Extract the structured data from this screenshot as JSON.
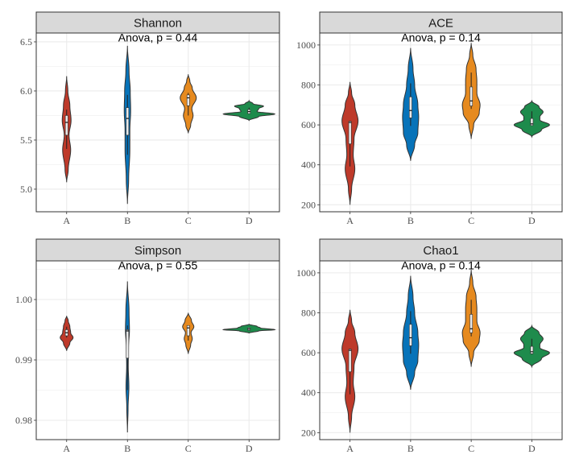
{
  "chart_data": [
    {
      "type": "violin",
      "title": "Shannon",
      "annotation": "Anova, p = 0.44",
      "categories": [
        "A",
        "B",
        "C",
        "D"
      ],
      "ylim": [
        4.77,
        6.59
      ],
      "yticks": [
        5.0,
        5.5,
        6.0,
        6.5
      ],
      "ytick_labels": [
        "5.0",
        "5.5",
        "6.0",
        "6.5"
      ],
      "grid": true,
      "groups": [
        {
          "name": "A",
          "density": [
            [
              5.07,
              0
            ],
            [
              5.2,
              2
            ],
            [
              5.4,
              5
            ],
            [
              5.55,
              3
            ],
            [
              5.7,
              5.5
            ],
            [
              5.85,
              4
            ],
            [
              6.0,
              1.5
            ],
            [
              6.15,
              0
            ]
          ],
          "box": {
            "lower": 5.41,
            "q1": 5.55,
            "median": 5.68,
            "q3": 5.75,
            "upper": 5.81
          }
        },
        {
          "name": "B",
          "density": [
            [
              4.85,
              0
            ],
            [
              5.1,
              1.5
            ],
            [
              5.4,
              3
            ],
            [
              5.6,
              3
            ],
            [
              5.8,
              4
            ],
            [
              6.0,
              3.5
            ],
            [
              6.2,
              2
            ],
            [
              6.46,
              0
            ]
          ],
          "box": {
            "lower": 5.35,
            "q1": 5.55,
            "median": 5.72,
            "q3": 5.83,
            "upper": 5.96
          }
        },
        {
          "name": "C",
          "density": [
            [
              5.57,
              0
            ],
            [
              5.65,
              3
            ],
            [
              5.75,
              6
            ],
            [
              5.82,
              4.5
            ],
            [
              5.93,
              10
            ],
            [
              6.03,
              5
            ],
            [
              6.1,
              2
            ],
            [
              6.17,
              0
            ]
          ],
          "box": {
            "lower": 5.75,
            "q1": 5.85,
            "median": 5.93,
            "q3": 5.96,
            "upper": 5.98
          }
        },
        {
          "name": "D",
          "density": [
            [
              5.7,
              0
            ],
            [
              5.74,
              12
            ],
            [
              5.765,
              32
            ],
            [
              5.79,
              10
            ],
            [
              5.82,
              12
            ],
            [
              5.845,
              18
            ],
            [
              5.87,
              5
            ],
            [
              5.9,
              0
            ]
          ],
          "box": {
            "lower": 5.77,
            "q1": 5.77,
            "median": 5.79,
            "q3": 5.81,
            "upper": 5.83
          }
        }
      ]
    },
    {
      "type": "violin",
      "title": "ACE",
      "annotation": "Anova, p = 0.14",
      "categories": [
        "A",
        "B",
        "C",
        "D"
      ],
      "ylim": [
        165,
        1060
      ],
      "yticks": [
        200,
        400,
        600,
        800,
        1000
      ],
      "ytick_labels": [
        "200",
        "400",
        "600",
        "800",
        "1000"
      ],
      "grid": true,
      "groups": [
        {
          "name": "A",
          "density": [
            [
              200,
              0
            ],
            [
              280,
              2
            ],
            [
              380,
              6
            ],
            [
              450,
              4
            ],
            [
              530,
              5
            ],
            [
              620,
              10
            ],
            [
              700,
              6
            ],
            [
              760,
              2
            ],
            [
              815,
              0
            ]
          ],
          "box": {
            "lower": 392,
            "q1": 505,
            "median": 612,
            "q3": 618,
            "upper": 620
          }
        },
        {
          "name": "B",
          "density": [
            [
              420,
              0
            ],
            [
              500,
              5
            ],
            [
              560,
              9
            ],
            [
              640,
              10
            ],
            [
              700,
              9
            ],
            [
              800,
              5
            ],
            [
              880,
              3
            ],
            [
              985,
              0
            ]
          ],
          "box": {
            "lower": 595,
            "q1": 635,
            "median": 672,
            "q3": 740,
            "upper": 808
          }
        },
        {
          "name": "C",
          "density": [
            [
              530,
              0
            ],
            [
              600,
              3
            ],
            [
              660,
              10
            ],
            [
              700,
              11
            ],
            [
              760,
              7
            ],
            [
              820,
              7
            ],
            [
              880,
              6
            ],
            [
              950,
              2
            ],
            [
              1010,
              0
            ]
          ],
          "box": {
            "lower": 680,
            "q1": 695,
            "median": 720,
            "q3": 790,
            "upper": 862
          }
        },
        {
          "name": "D",
          "density": [
            [
              540,
              0
            ],
            [
              575,
              12
            ],
            [
              600,
              22
            ],
            [
              625,
              10
            ],
            [
              640,
              10
            ],
            [
              665,
              14
            ],
            [
              690,
              9
            ],
            [
              720,
              0
            ]
          ],
          "box": {
            "lower": 597,
            "q1": 597,
            "median": 605,
            "q3": 632,
            "upper": 668
          }
        }
      ]
    },
    {
      "type": "violin",
      "title": "Simpson",
      "annotation": "Anova, p = 0.55",
      "categories": [
        "A",
        "B",
        "C",
        "D"
      ],
      "ylim": [
        0.9768,
        1.0064
      ],
      "yticks": [
        0.98,
        0.99,
        1.0
      ],
      "ytick_labels": [
        "0.98",
        "0.99",
        "1.00"
      ],
      "grid": true,
      "groups": [
        {
          "name": "A",
          "density": [
            [
              0.9915,
              0
            ],
            [
              0.9928,
              4
            ],
            [
              0.9937,
              8
            ],
            [
              0.9945,
              5
            ],
            [
              0.9955,
              4
            ],
            [
              0.9965,
              2
            ],
            [
              0.9973,
              0
            ]
          ],
          "box": {
            "lower": 0.9937,
            "q1": 0.994,
            "median": 0.9945,
            "q3": 0.995,
            "upper": 0.9955
          }
        },
        {
          "name": "B",
          "density": [
            [
              0.978,
              0
            ],
            [
              0.982,
              0.8
            ],
            [
              0.9855,
              1.8
            ],
            [
              0.989,
              1
            ],
            [
              0.992,
              1.3
            ],
            [
              0.995,
              2.5
            ],
            [
              0.998,
              2
            ],
            [
              1.003,
              0
            ]
          ],
          "box": {
            "lower": 0.985,
            "q1": 0.9903,
            "median": 0.9948,
            "q3": 0.995,
            "upper": 0.9957
          }
        },
        {
          "name": "C",
          "density": [
            [
              0.991,
              0
            ],
            [
              0.9925,
              3
            ],
            [
              0.9935,
              5
            ],
            [
              0.9945,
              3.5
            ],
            [
              0.9955,
              7
            ],
            [
              0.9965,
              4
            ],
            [
              0.9978,
              0
            ]
          ],
          "box": {
            "lower": 0.9932,
            "q1": 0.994,
            "median": 0.9953,
            "q3": 0.9957,
            "upper": 0.9957
          }
        },
        {
          "name": "D",
          "density": [
            [
              0.99445,
              0
            ],
            [
              0.9948,
              12
            ],
            [
              0.995,
              32
            ],
            [
              0.9953,
              14
            ],
            [
              0.99555,
              10
            ],
            [
              0.9959,
              0
            ]
          ],
          "box": {
            "lower": 0.9949,
            "q1": 0.9949,
            "median": 0.9951,
            "q3": 0.9953,
            "upper": 0.9954
          }
        }
      ]
    },
    {
      "type": "violin",
      "title": "Chao1",
      "annotation": "Anova, p = 0.14",
      "categories": [
        "A",
        "B",
        "C",
        "D"
      ],
      "ylim": [
        165,
        1060
      ],
      "yticks": [
        200,
        400,
        600,
        800,
        1000
      ],
      "ytick_labels": [
        "200",
        "400",
        "600",
        "800",
        "1000"
      ],
      "grid": true,
      "groups": [
        {
          "name": "A",
          "density": [
            [
              200,
              0
            ],
            [
              280,
              2
            ],
            [
              380,
              6
            ],
            [
              450,
              4
            ],
            [
              530,
              5
            ],
            [
              620,
              10
            ],
            [
              700,
              6
            ],
            [
              760,
              2
            ],
            [
              815,
              0
            ]
          ],
          "box": {
            "lower": 392,
            "q1": 505,
            "median": 612,
            "q3": 618,
            "upper": 620
          }
        },
        {
          "name": "B",
          "density": [
            [
              415,
              0
            ],
            [
              500,
              5
            ],
            [
              560,
              9
            ],
            [
              640,
              10
            ],
            [
              700,
              9
            ],
            [
              800,
              5
            ],
            [
              880,
              3
            ],
            [
              985,
              0
            ]
          ],
          "box": {
            "lower": 595,
            "q1": 635,
            "median": 675,
            "q3": 742,
            "upper": 808
          }
        },
        {
          "name": "C",
          "density": [
            [
              530,
              0
            ],
            [
              600,
              3
            ],
            [
              660,
              10
            ],
            [
              700,
              11
            ],
            [
              760,
              7
            ],
            [
              820,
              7
            ],
            [
              880,
              6
            ],
            [
              950,
              2
            ],
            [
              1015,
              0
            ]
          ],
          "box": {
            "lower": 682,
            "q1": 700,
            "median": 720,
            "q3": 792,
            "upper": 865
          }
        },
        {
          "name": "D",
          "density": [
            [
              530,
              0
            ],
            [
              570,
              12
            ],
            [
              600,
              22
            ],
            [
              625,
              10
            ],
            [
              640,
              10
            ],
            [
              670,
              14
            ],
            [
              700,
              9
            ],
            [
              735,
              0
            ]
          ],
          "box": {
            "lower": 592,
            "q1": 595,
            "median": 605,
            "q3": 632,
            "upper": 670
          }
        }
      ]
    }
  ],
  "colors": {
    "A": "#BE3A2A",
    "B": "#0773B9",
    "C": "#E68A1F",
    "D": "#1E8B4C"
  }
}
